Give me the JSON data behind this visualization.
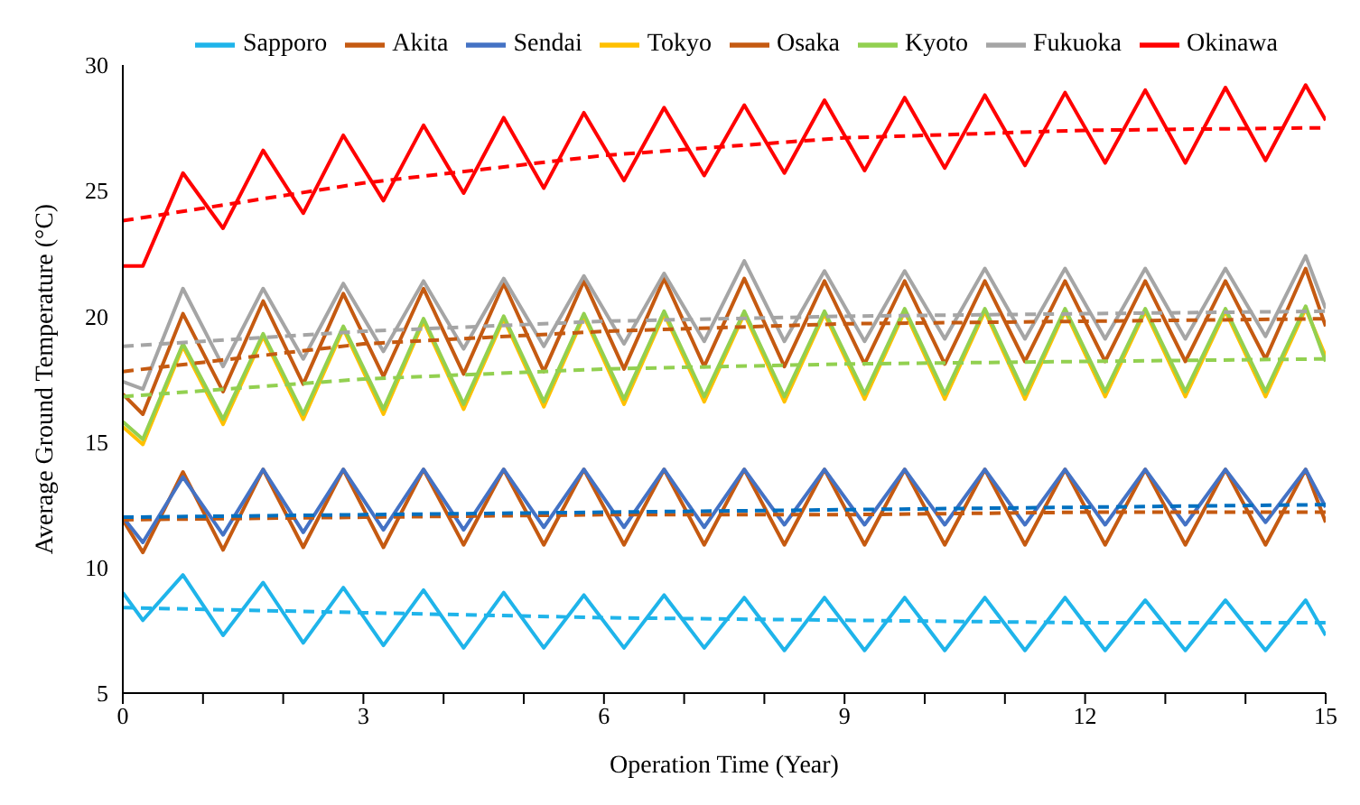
{
  "chart_data": {
    "type": "line",
    "xlabel": "Operation Time (Year)",
    "ylabel": "Average Ground Temperature (°C)",
    "x": [
      0,
      0.25,
      0.75,
      1.25,
      1.75,
      2.25,
      2.75,
      3.25,
      3.75,
      4.25,
      4.75,
      5.25,
      5.75,
      6.25,
      6.75,
      7.25,
      7.75,
      8.25,
      8.75,
      9.25,
      9.75,
      10.25,
      10.75,
      11.25,
      11.75,
      12.25,
      12.75,
      13.25,
      13.75,
      14.25,
      14.75,
      15
    ],
    "xlim": [
      0,
      15
    ],
    "xticks": [
      0,
      {
        "value": 1,
        "label": null
      },
      {
        "value": 2,
        "label": null
      },
      3,
      {
        "value": 4,
        "label": null
      },
      {
        "value": 5,
        "label": null
      },
      6,
      {
        "value": 7,
        "label": null
      },
      {
        "value": 8,
        "label": null
      },
      9,
      {
        "value": 10,
        "label": null
      },
      {
        "value": 11,
        "label": null
      },
      12,
      {
        "value": 13,
        "label": null
      },
      {
        "value": 14,
        "label": null
      },
      15
    ],
    "ylim": [
      5,
      30
    ],
    "yticks": [
      5,
      10,
      15,
      20,
      25,
      30
    ],
    "grid": false,
    "legend": "top",
    "marker": "none",
    "line_style": "solid",
    "series": [
      {
        "name": "Sapporo",
        "color": "#1fb4ea",
        "values": [
          9.0,
          7.9,
          9.7,
          7.3,
          9.4,
          7.0,
          9.2,
          6.9,
          9.1,
          6.8,
          9.0,
          6.8,
          8.9,
          6.8,
          8.9,
          6.8,
          8.8,
          6.7,
          8.8,
          6.7,
          8.8,
          6.7,
          8.8,
          6.7,
          8.8,
          6.7,
          8.7,
          6.7,
          8.7,
          6.7,
          8.7,
          7.3
        ]
      },
      {
        "name": "Akita",
        "color": "#c55a11",
        "values": [
          11.9,
          10.6,
          13.8,
          10.7,
          13.9,
          10.8,
          13.9,
          10.8,
          13.9,
          10.9,
          13.9,
          10.9,
          13.9,
          10.9,
          13.9,
          10.9,
          13.9,
          10.9,
          13.9,
          10.9,
          13.9,
          10.9,
          13.9,
          10.9,
          13.9,
          10.9,
          13.9,
          10.9,
          13.9,
          10.9,
          13.9,
          11.8
        ]
      },
      {
        "name": "Sendai",
        "color": "#4472c4",
        "values": [
          12.0,
          11.0,
          13.6,
          11.3,
          13.9,
          11.4,
          13.9,
          11.5,
          13.9,
          11.5,
          13.9,
          11.6,
          13.9,
          11.6,
          13.9,
          11.6,
          13.9,
          11.7,
          13.9,
          11.7,
          13.9,
          11.7,
          13.9,
          11.7,
          13.9,
          11.7,
          13.9,
          11.7,
          13.9,
          11.8,
          13.9,
          12.4
        ]
      },
      {
        "name": "Tokyo",
        "color": "#ffc000",
        "values": [
          15.6,
          14.9,
          18.8,
          15.7,
          19.2,
          15.9,
          19.5,
          16.1,
          19.8,
          16.3,
          19.9,
          16.4,
          20.0,
          16.5,
          20.1,
          16.6,
          20.1,
          16.6,
          20.1,
          16.7,
          20.2,
          16.7,
          20.2,
          16.7,
          20.2,
          16.8,
          20.2,
          16.8,
          20.2,
          16.8,
          20.3,
          18.4
        ]
      },
      {
        "name": "Osaka",
        "color": "#c55a11",
        "values": [
          16.9,
          16.1,
          20.1,
          17.0,
          20.6,
          17.3,
          20.9,
          17.6,
          21.1,
          17.7,
          21.3,
          17.8,
          21.4,
          17.9,
          21.5,
          18.0,
          21.5,
          18.0,
          21.4,
          18.1,
          21.4,
          18.1,
          21.4,
          18.2,
          21.4,
          18.2,
          21.4,
          18.2,
          21.4,
          18.3,
          21.9,
          19.6
        ]
      },
      {
        "name": "Kyoto",
        "color": "#92d050",
        "values": [
          15.8,
          15.1,
          18.9,
          15.9,
          19.3,
          16.1,
          19.6,
          16.3,
          19.9,
          16.5,
          20.0,
          16.6,
          20.1,
          16.7,
          20.2,
          16.8,
          20.2,
          16.8,
          20.2,
          16.9,
          20.3,
          16.9,
          20.3,
          16.9,
          20.3,
          17.0,
          20.3,
          17.0,
          20.3,
          17.0,
          20.4,
          18.2
        ]
      },
      {
        "name": "Fukuoka",
        "color": "#a5a5a5",
        "values": [
          17.4,
          17.1,
          21.1,
          18.0,
          21.1,
          18.3,
          21.3,
          18.6,
          21.4,
          18.7,
          21.5,
          18.8,
          21.6,
          18.9,
          21.7,
          19.0,
          22.2,
          19.0,
          21.8,
          19.0,
          21.8,
          19.1,
          21.9,
          19.1,
          21.9,
          19.1,
          21.9,
          19.1,
          21.9,
          19.2,
          22.4,
          20.3
        ]
      },
      {
        "name": "Okinawa",
        "color": "#ff0000",
        "values": [
          22.0,
          22.0,
          25.7,
          23.5,
          26.6,
          24.1,
          27.2,
          24.6,
          27.6,
          24.9,
          27.9,
          25.1,
          28.1,
          25.4,
          28.3,
          25.6,
          28.4,
          25.7,
          28.6,
          25.8,
          28.7,
          25.9,
          28.8,
          26.0,
          28.9,
          26.1,
          29.0,
          26.1,
          29.1,
          26.2,
          29.2,
          27.8
        ]
      },
      {
        "type": "line",
        "line_style": "dashed",
        "color": "#1fb4ea",
        "x": [
          0,
          3,
          6,
          9,
          12,
          15
        ],
        "values": [
          8.4,
          8.2,
          8.0,
          7.9,
          7.8,
          7.8
        ]
      },
      {
        "type": "line",
        "line_style": "dashed",
        "color": "#c55a11",
        "x": [
          0,
          3,
          6,
          9,
          12,
          15
        ],
        "values": [
          11.9,
          12.0,
          12.1,
          12.1,
          12.2,
          12.2
        ]
      },
      {
        "type": "line",
        "line_style": "dashed",
        "color": "#0070c0",
        "x": [
          0,
          3,
          6,
          9,
          12,
          15
        ],
        "values": [
          12.0,
          12.1,
          12.2,
          12.3,
          12.4,
          12.5
        ]
      },
      {
        "type": "line",
        "line_style": "dashed",
        "color": "#92d050",
        "x": [
          0,
          3,
          6,
          9,
          12,
          15
        ],
        "values": [
          16.8,
          17.5,
          17.9,
          18.1,
          18.2,
          18.3
        ]
      },
      {
        "type": "line",
        "line_style": "dashed",
        "color": "#c55a11",
        "x": [
          0,
          3,
          6,
          9,
          12,
          15
        ],
        "values": [
          17.8,
          18.9,
          19.4,
          19.7,
          19.8,
          19.9
        ]
      },
      {
        "type": "line",
        "line_style": "dashed",
        "color": "#a5a5a5",
        "x": [
          0,
          3,
          6,
          9,
          12,
          15
        ],
        "values": [
          18.8,
          19.4,
          19.8,
          20.0,
          20.1,
          20.2
        ]
      },
      {
        "type": "line",
        "line_style": "dashed",
        "color": "#ff0000",
        "x": [
          0,
          3,
          6,
          9,
          12,
          15
        ],
        "values": [
          23.8,
          25.3,
          26.4,
          27.1,
          27.4,
          27.5
        ]
      }
    ]
  }
}
